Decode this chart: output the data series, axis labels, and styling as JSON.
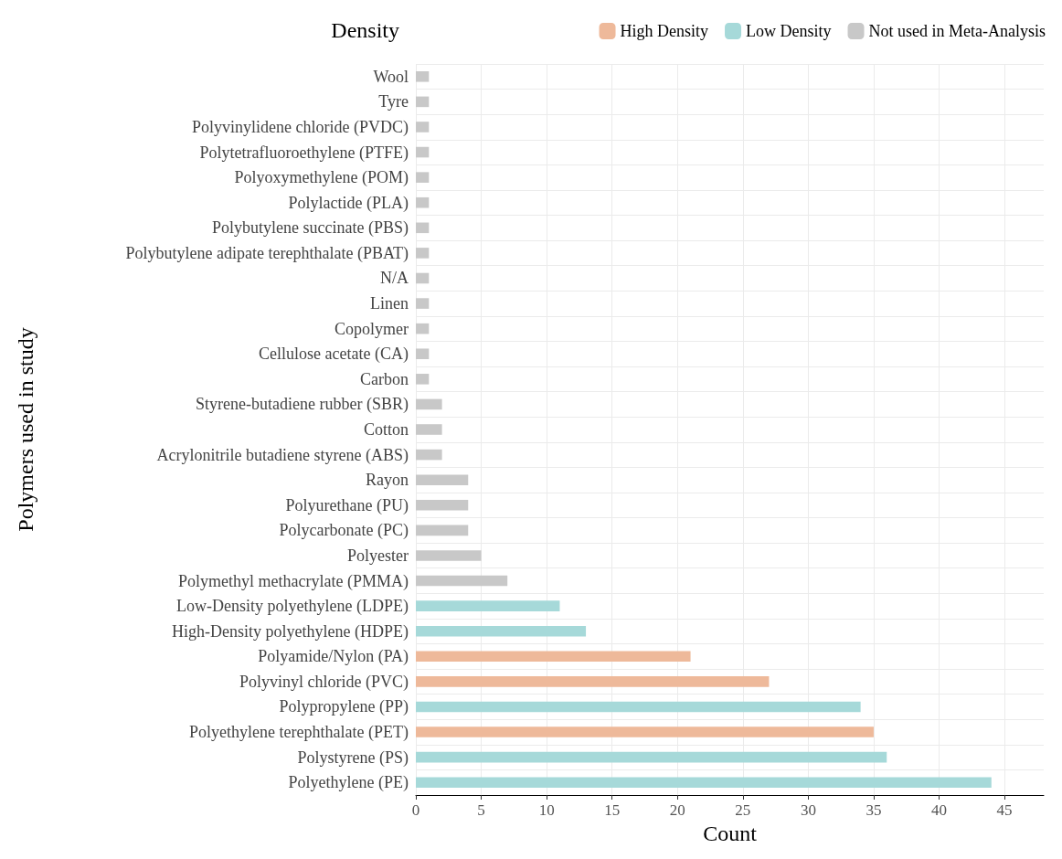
{
  "chart_data": {
    "type": "bar",
    "orientation": "horizontal",
    "stacked": true,
    "categories": [
      "Wool",
      "Tyre",
      "Polyvinylidene chloride (PVDC)",
      "Polytetrafluoroethylene (PTFE)",
      "Polyoxymethylene (POM)",
      "Polylactide (PLA)",
      "Polybutylene succinate (PBS)",
      "Polybutylene adipate terephthalate (PBAT)",
      "N/A",
      "Linen",
      "Copolymer",
      "Cellulose acetate (CA)",
      "Carbon",
      "Styrene-butadiene rubber (SBR)",
      "Cotton",
      "Acrylonitrile butadiene styrene (ABS)",
      "Rayon",
      "Polyurethane (PU)",
      "Polycarbonate (PC)",
      "Polyester",
      "Polymethyl methacrylate (PMMA)",
      "Low-Density polyethylene (LDPE)",
      "High-Density polyethylene (HDPE)",
      "Polyamide/Nylon (PA)",
      "Polyvinyl chloride (PVC)",
      "Polypropylene (PP)",
      "Polyethylene terephthalate (PET)",
      "Polystyrene (PS)",
      "Polyethylene (PE)"
    ],
    "series": [
      {
        "name": "High Density",
        "color": "#eeb99a",
        "values": [
          null,
          null,
          null,
          null,
          null,
          null,
          null,
          null,
          null,
          null,
          null,
          null,
          null,
          null,
          null,
          null,
          null,
          null,
          null,
          null,
          null,
          null,
          null,
          21,
          27,
          null,
          35,
          null,
          null
        ]
      },
      {
        "name": "Low Density",
        "color": "#a6d9d9",
        "values": [
          null,
          null,
          null,
          null,
          null,
          null,
          null,
          null,
          null,
          null,
          null,
          null,
          null,
          null,
          null,
          null,
          null,
          null,
          null,
          null,
          null,
          11,
          13,
          null,
          null,
          34,
          null,
          36,
          44
        ]
      },
      {
        "name": "Not used in Meta-Analysis",
        "color": "#c8c8c8",
        "values": [
          1,
          1,
          1,
          1,
          1,
          1,
          1,
          1,
          1,
          1,
          1,
          1,
          1,
          2,
          2,
          2,
          4,
          4,
          4,
          5,
          7,
          null,
          null,
          null,
          null,
          null,
          null,
          null,
          null
        ]
      }
    ],
    "xlim": [
      0,
      48
    ],
    "xticks": [
      0,
      5,
      10,
      15,
      20,
      25,
      30,
      35,
      40,
      45
    ],
    "xlabel": "Count",
    "ylabel": "Polymers used in study",
    "legend_title": "Density",
    "legend": "top right",
    "grid": true
  }
}
